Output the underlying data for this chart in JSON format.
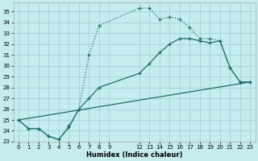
{
  "xlabel": "Humidex (Indice chaleur)",
  "bg_color": "#c6edee",
  "grid_color": "#9acece",
  "line_color": "#1a6b6b",
  "xlim": [
    -0.5,
    23.5
  ],
  "ylim": [
    23,
    35.8
  ],
  "xticks": [
    0,
    1,
    2,
    3,
    4,
    5,
    6,
    7,
    8,
    9,
    12,
    13,
    14,
    15,
    16,
    17,
    18,
    19,
    20,
    21,
    22,
    23
  ],
  "yticks": [
    23,
    24,
    25,
    26,
    27,
    28,
    29,
    30,
    31,
    32,
    33,
    34,
    35
  ],
  "line1_x": [
    0,
    1,
    2,
    3,
    4,
    5,
    6,
    7,
    8,
    12,
    13,
    14,
    15,
    16,
    17,
    18,
    19,
    20,
    21,
    22,
    23
  ],
  "line1_y": [
    25,
    24.2,
    24.2,
    23.5,
    23.2,
    24.5,
    26.0,
    31.0,
    33.7,
    35.3,
    35.3,
    34.3,
    34.5,
    34.3,
    33.5,
    32.5,
    32.5,
    32.3,
    29.8,
    28.5,
    28.5
  ],
  "line2_x": [
    0,
    1,
    2,
    3,
    4,
    5,
    6,
    7,
    8,
    12,
    13,
    14,
    15,
    16,
    17,
    18,
    19,
    20,
    21,
    22,
    23
  ],
  "line2_y": [
    25,
    24.2,
    24.2,
    23.5,
    23.2,
    24.3,
    26.0,
    27.0,
    28.0,
    29.3,
    30.2,
    31.2,
    32.0,
    32.5,
    32.5,
    32.3,
    32.1,
    32.3,
    29.8,
    28.5,
    28.5
  ],
  "line3_x": [
    0,
    23
  ],
  "line3_y": [
    25,
    28.5
  ]
}
